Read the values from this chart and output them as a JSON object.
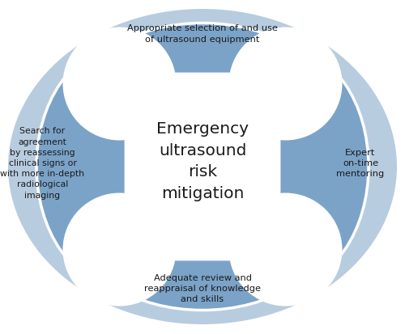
{
  "title": "Emergency\nultrasound\nrisk\nmitigation",
  "top_text": "Appropriate selection of and use\nof ultrasound equipment",
  "left_text": "Search for\nagreement\nby reassessing\nclinical signs or\nwith more in-depth\nradiological\nimaging",
  "right_text": "Expert\non-time\nmentoring",
  "bottom_text": "Adequate review and\nreappraisal of knowledge\nand skills",
  "outer_color": "#b8cce0",
  "petal_color": "#7ba3c8",
  "center_color": "#ffffff",
  "text_color": "#1a1a1a",
  "fig_bg": "#ffffff",
  "border_color": "#ffffff"
}
